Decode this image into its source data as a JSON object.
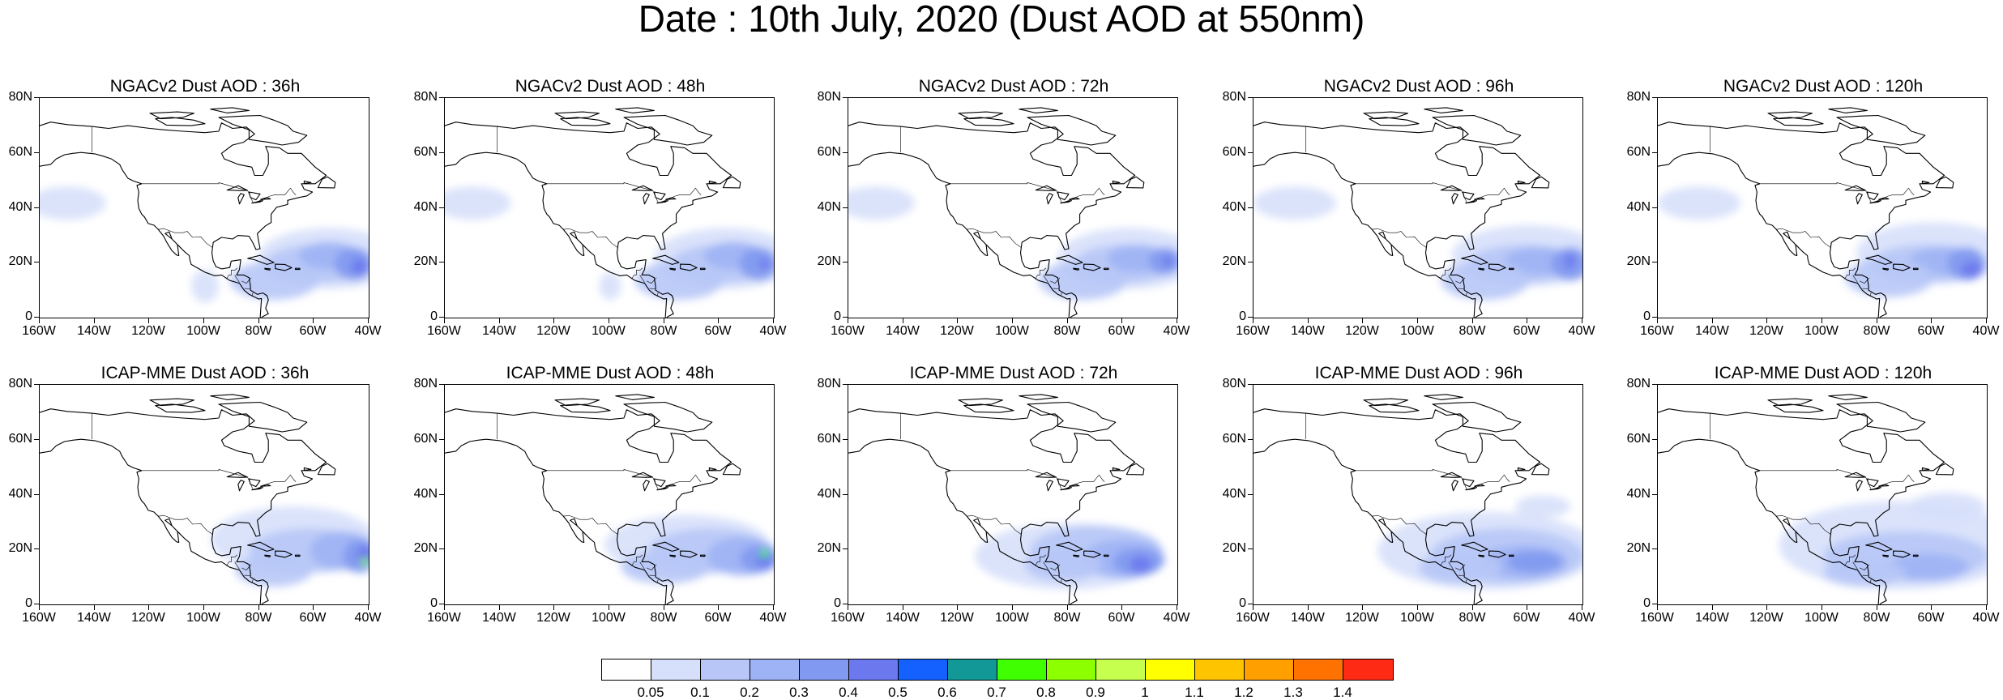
{
  "title": "Date : 10th July, 2020 (Dust AOD at 550nm)",
  "y_ticks": [
    "80N",
    "60N",
    "40N",
    "20N",
    "0"
  ],
  "x_ticks": [
    "160W",
    "140W",
    "120W",
    "100W",
    "80W",
    "60W",
    "40W"
  ],
  "panels": [
    {
      "title": "NGACv2 Dust AOD : 36h"
    },
    {
      "title": "NGACv2 Dust AOD : 48h"
    },
    {
      "title": "NGACv2 Dust AOD : 72h"
    },
    {
      "title": "NGACv2 Dust AOD : 96h"
    },
    {
      "title": "NGACv2 Dust AOD : 120h"
    },
    {
      "title": "ICAP-MME Dust AOD : 36h"
    },
    {
      "title": "ICAP-MME Dust AOD : 48h"
    },
    {
      "title": "ICAP-MME Dust AOD : 72h"
    },
    {
      "title": "ICAP-MME Dust AOD : 96h"
    },
    {
      "title": "ICAP-MME Dust AOD : 120h"
    }
  ],
  "colorbar": {
    "labels": [
      "0.05",
      "0.1",
      "0.2",
      "0.3",
      "0.4",
      "0.5",
      "0.6",
      "0.7",
      "0.8",
      "0.9",
      "1",
      "1.1",
      "1.2",
      "1.3",
      "1.4"
    ],
    "colors": [
      "#ffffff",
      "#d7e0fb",
      "#b7c6f7",
      "#9eb3f5",
      "#8199f0",
      "#6b78ee",
      "#1461ff",
      "#129896",
      "#3fff00",
      "#8cff00",
      "#c7ff4e",
      "#ffff00",
      "#ffc400",
      "#ff9f00",
      "#ff7200",
      "#ff2a14"
    ]
  }
}
